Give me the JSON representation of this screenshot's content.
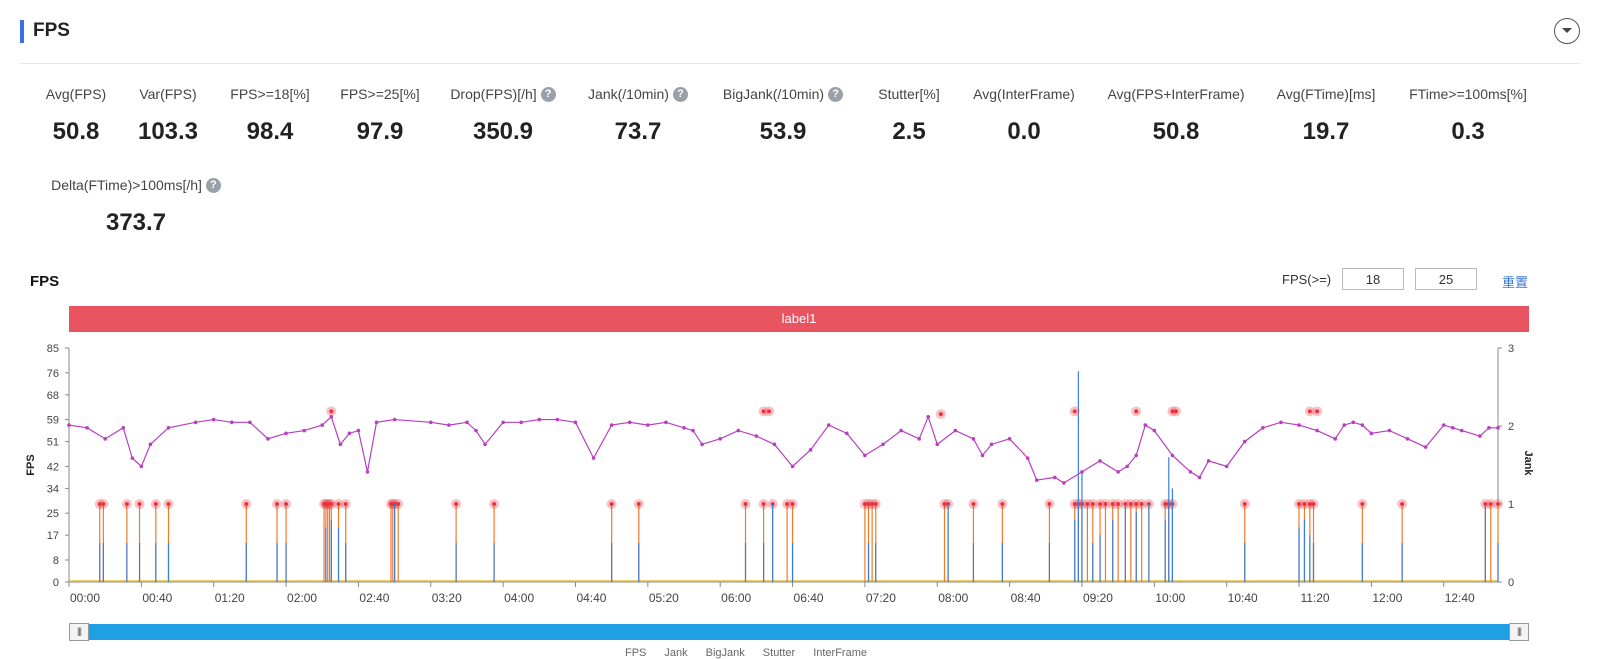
{
  "header": {
    "title": "FPS"
  },
  "metrics": [
    {
      "label": "Avg(FPS)",
      "value": "50.8",
      "help": false
    },
    {
      "label": "Var(FPS)",
      "value": "103.3",
      "help": false
    },
    {
      "label": "FPS>=18[%]",
      "value": "98.4",
      "help": false
    },
    {
      "label": "FPS>=25[%]",
      "value": "97.9",
      "help": false
    },
    {
      "label": "Drop(FPS)[/h]",
      "value": "350.9",
      "help": true
    },
    {
      "label": "Jank(/10min)",
      "value": "73.7",
      "help": true
    },
    {
      "label": "BigJank(/10min)",
      "value": "53.9",
      "help": true
    },
    {
      "label": "Stutter[%]",
      "value": "2.5",
      "help": false
    },
    {
      "label": "Avg(InterFrame)",
      "value": "0.0",
      "help": false
    },
    {
      "label": "Avg(FPS+InterFrame)",
      "value": "50.8",
      "help": false
    },
    {
      "label": "Avg(FTime)[ms]",
      "value": "19.7",
      "help": false
    },
    {
      "label": "FTime>=100ms[%]",
      "value": "0.3",
      "help": false
    },
    {
      "label": "Delta(FTime)>100ms[/h]",
      "value": "373.7",
      "help": true
    }
  ],
  "chart_section": {
    "title": "FPS",
    "filter_label": "FPS(>=)",
    "threshold1": "18",
    "threshold2": "25",
    "reset_label": "重置",
    "band_label": "label1",
    "zoom_handle": "|||"
  },
  "legend": [
    "FPS",
    "Jank",
    "BigJank",
    "Stutter",
    "InterFrame"
  ],
  "colors": {
    "accent": "#3b6ee8",
    "band": "#e85561",
    "fps_line": "#b83fc0",
    "jank": "#f07a2c",
    "bigjank": "#3b7ed8",
    "stutter": "#e8c03a",
    "marker": "#e83540",
    "zoom": "#1f9fe5"
  },
  "chart_data": {
    "type": "line",
    "title": "FPS",
    "ylabel": "FPS",
    "y2label": "Jank",
    "y_ticks": [
      0,
      8,
      17,
      25,
      34,
      42,
      51,
      59,
      68,
      76,
      85
    ],
    "y2_ticks": [
      0,
      1,
      2,
      3
    ],
    "x_ticks": [
      "00:00",
      "00:40",
      "01:20",
      "02:00",
      "02:40",
      "03:20",
      "04:00",
      "04:40",
      "05:20",
      "06:00",
      "06:40",
      "07:20",
      "08:00",
      "08:40",
      "09:20",
      "10:00",
      "10:40",
      "11:20",
      "12:00",
      "12:40"
    ],
    "x_range_seconds": [
      0,
      790
    ],
    "y_range": [
      0,
      85
    ],
    "y2_range": [
      0,
      3
    ],
    "series": [
      {
        "name": "FPS",
        "points": [
          [
            0,
            57
          ],
          [
            10,
            56
          ],
          [
            20,
            52
          ],
          [
            30,
            56
          ],
          [
            35,
            45
          ],
          [
            40,
            42
          ],
          [
            45,
            50
          ],
          [
            55,
            56
          ],
          [
            70,
            58
          ],
          [
            80,
            59
          ],
          [
            90,
            58
          ],
          [
            100,
            58
          ],
          [
            110,
            52
          ],
          [
            120,
            54
          ],
          [
            130,
            55
          ],
          [
            140,
            57
          ],
          [
            145,
            60
          ],
          [
            150,
            50
          ],
          [
            155,
            54
          ],
          [
            160,
            55
          ],
          [
            165,
            40
          ],
          [
            170,
            58
          ],
          [
            180,
            59
          ],
          [
            200,
            58
          ],
          [
            210,
            57
          ],
          [
            220,
            58
          ],
          [
            225,
            55
          ],
          [
            230,
            50
          ],
          [
            240,
            58
          ],
          [
            250,
            58
          ],
          [
            260,
            59
          ],
          [
            270,
            59
          ],
          [
            280,
            58
          ],
          [
            290,
            45
          ],
          [
            300,
            57
          ],
          [
            310,
            58
          ],
          [
            320,
            57
          ],
          [
            330,
            58
          ],
          [
            340,
            56
          ],
          [
            345,
            55
          ],
          [
            350,
            50
          ],
          [
            360,
            52
          ],
          [
            370,
            55
          ],
          [
            380,
            53
          ],
          [
            390,
            50
          ],
          [
            400,
            42
          ],
          [
            410,
            48
          ],
          [
            420,
            57
          ],
          [
            430,
            54
          ],
          [
            440,
            46
          ],
          [
            450,
            50
          ],
          [
            460,
            55
          ],
          [
            470,
            52
          ],
          [
            475,
            60
          ],
          [
            480,
            50
          ],
          [
            490,
            55
          ],
          [
            500,
            52
          ],
          [
            505,
            46
          ],
          [
            510,
            50
          ],
          [
            520,
            52
          ],
          [
            530,
            45
          ],
          [
            535,
            37
          ],
          [
            545,
            38
          ],
          [
            550,
            36
          ],
          [
            560,
            40
          ],
          [
            570,
            44
          ],
          [
            580,
            40
          ],
          [
            585,
            42
          ],
          [
            590,
            46
          ],
          [
            595,
            57
          ],
          [
            600,
            55
          ],
          [
            610,
            46
          ],
          [
            620,
            40
          ],
          [
            625,
            38
          ],
          [
            630,
            44
          ],
          [
            640,
            42
          ],
          [
            650,
            51
          ],
          [
            660,
            56
          ],
          [
            670,
            58
          ],
          [
            680,
            57
          ],
          [
            690,
            55
          ],
          [
            700,
            52
          ],
          [
            705,
            57
          ],
          [
            710,
            58
          ],
          [
            715,
            57
          ],
          [
            720,
            54
          ],
          [
            730,
            55
          ],
          [
            740,
            52
          ],
          [
            750,
            49
          ],
          [
            760,
            57
          ],
          [
            765,
            56
          ],
          [
            770,
            55
          ],
          [
            780,
            53
          ],
          [
            785,
            56
          ],
          [
            790,
            56
          ]
        ]
      },
      {
        "name": "Jank",
        "points": [
          [
            17,
            1
          ],
          [
            19,
            1
          ],
          [
            32,
            1
          ],
          [
            39,
            1
          ],
          [
            48,
            1
          ],
          [
            55,
            1
          ],
          [
            98,
            1
          ],
          [
            115,
            1
          ],
          [
            120,
            1
          ],
          [
            141,
            1
          ],
          [
            142,
            1
          ],
          [
            143,
            1
          ],
          [
            144,
            1
          ],
          [
            145,
            1
          ],
          [
            149,
            1
          ],
          [
            153,
            1
          ],
          [
            178,
            1
          ],
          [
            179,
            1
          ],
          [
            180,
            1
          ],
          [
            182,
            1
          ],
          [
            214,
            1
          ],
          [
            235,
            1
          ],
          [
            300,
            1
          ],
          [
            315,
            1
          ],
          [
            374,
            1
          ],
          [
            384,
            1
          ],
          [
            389,
            1
          ],
          [
            397,
            1
          ],
          [
            400,
            1
          ],
          [
            440,
            1
          ],
          [
            442,
            1
          ],
          [
            444,
            1
          ],
          [
            446,
            1
          ],
          [
            484,
            1
          ],
          [
            486,
            1
          ],
          [
            500,
            1
          ],
          [
            516,
            1
          ],
          [
            542,
            1
          ],
          [
            556,
            1
          ],
          [
            558,
            1
          ],
          [
            560,
            1
          ],
          [
            563,
            1
          ],
          [
            566,
            1
          ],
          [
            570,
            1
          ],
          [
            573,
            1
          ],
          [
            577,
            1
          ],
          [
            580,
            1
          ],
          [
            584,
            1
          ],
          [
            587,
            1
          ],
          [
            590,
            1
          ],
          [
            593,
            1
          ],
          [
            597,
            1
          ],
          [
            606,
            1
          ],
          [
            608,
            1
          ],
          [
            610,
            1
          ],
          [
            650,
            1
          ],
          [
            680,
            1
          ],
          [
            683,
            1
          ],
          [
            686,
            1
          ],
          [
            688,
            1
          ],
          [
            715,
            1
          ],
          [
            737,
            1
          ],
          [
            783,
            1
          ],
          [
            786,
            1
          ],
          [
            790,
            1
          ]
        ]
      },
      {
        "name": "BigJank",
        "points": [
          [
            17,
            0.5
          ],
          [
            19,
            0.5
          ],
          [
            32,
            0.5
          ],
          [
            39,
            0.5
          ],
          [
            48,
            0.5
          ],
          [
            55,
            0.5
          ],
          [
            98,
            0.5
          ],
          [
            115,
            0.5
          ],
          [
            120,
            0.5
          ],
          [
            142,
            0.7
          ],
          [
            145,
            0.8
          ],
          [
            149,
            0.7
          ],
          [
            153,
            0.5
          ],
          [
            180,
            1
          ],
          [
            214,
            0.5
          ],
          [
            235,
            0.5
          ],
          [
            300,
            0.5
          ],
          [
            315,
            0.5
          ],
          [
            374,
            0.5
          ],
          [
            384,
            0.5
          ],
          [
            389,
            1
          ],
          [
            400,
            0.5
          ],
          [
            442,
            0.5
          ],
          [
            446,
            0.5
          ],
          [
            486,
            1
          ],
          [
            500,
            0.5
          ],
          [
            516,
            0.5
          ],
          [
            542,
            0.5
          ],
          [
            556,
            0.8
          ],
          [
            558,
            2.7
          ],
          [
            560,
            1.4
          ],
          [
            566,
            0.5
          ],
          [
            570,
            0.6
          ],
          [
            577,
            0.8
          ],
          [
            584,
            1
          ],
          [
            590,
            0.9
          ],
          [
            597,
            1
          ],
          [
            606,
            0.8
          ],
          [
            608,
            1.6
          ],
          [
            610,
            1.2
          ],
          [
            650,
            0.5
          ],
          [
            680,
            0.7
          ],
          [
            683,
            0.8
          ],
          [
            686,
            0.6
          ],
          [
            688,
            0.5
          ],
          [
            715,
            0.5
          ],
          [
            737,
            0.5
          ],
          [
            783,
            1
          ],
          [
            790,
            0.5
          ]
        ]
      },
      {
        "name": "Stutter",
        "points": [
          [
            0,
            0
          ],
          [
            790,
            0
          ]
        ]
      }
    ],
    "markers_fps": [
      [
        145,
        62
      ],
      [
        384,
        62
      ],
      [
        387,
        62
      ],
      [
        482,
        61
      ],
      [
        556,
        62
      ],
      [
        590,
        62
      ],
      [
        610,
        62
      ],
      [
        612,
        62
      ],
      [
        686,
        62
      ],
      [
        690,
        62
      ]
    ]
  }
}
